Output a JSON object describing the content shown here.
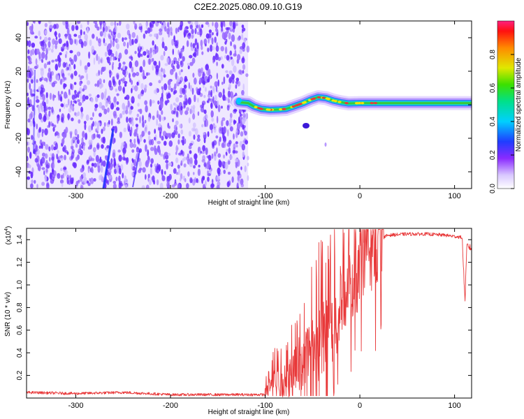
{
  "title": "C2E2.2025.080.09.10.G19",
  "colors": {
    "snr_line": "#e8393a",
    "track_core": "#e8393a",
    "track_mid": "#39c83a",
    "track_outer": "#2f7cff",
    "noise": "#6a2cff",
    "noise_light": "#c9b6ff"
  },
  "chart_data": [
    {
      "type": "heatmap",
      "xlabel": "Height of straight line (km)",
      "ylabel": "Frequency (Hz)",
      "xlim": [
        -352,
        118
      ],
      "ylim": [
        -50,
        50
      ],
      "x_ticks": [
        -300,
        -200,
        -100,
        0,
        100
      ],
      "x_tick_labels": [
        "-300",
        "-200",
        "-100",
        "0",
        "100"
      ],
      "y_ticks": [
        -40,
        -20,
        0,
        20,
        40
      ],
      "y_tick_labels": [
        "-40",
        "-20",
        "0",
        "20",
        "40"
      ],
      "noise_region_x": [
        -352,
        -118
      ],
      "signal_track": [
        {
          "x": -128,
          "y": 1.5
        },
        {
          "x": -118,
          "y": 1.0
        },
        {
          "x": -112,
          "y": -1.0
        },
        {
          "x": -104,
          "y": -2.5
        },
        {
          "x": -95,
          "y": -3.0
        },
        {
          "x": -85,
          "y": -2.8
        },
        {
          "x": -78,
          "y": -2.5
        },
        {
          "x": -70,
          "y": -1.0
        },
        {
          "x": -60,
          "y": 1.0
        },
        {
          "x": -52,
          "y": 3.0
        },
        {
          "x": -44,
          "y": 4.5
        },
        {
          "x": -36,
          "y": 4.0
        },
        {
          "x": -28,
          "y": 2.5
        },
        {
          "x": -20,
          "y": 1.5
        },
        {
          "x": -12,
          "y": 0.8
        },
        {
          "x": 0,
          "y": 1.0
        },
        {
          "x": 20,
          "y": 1.0
        },
        {
          "x": 50,
          "y": 1.0
        },
        {
          "x": 80,
          "y": 1.0
        },
        {
          "x": 118,
          "y": 1.0
        }
      ],
      "colorbar": {
        "label": "Normalized spectral amplitude",
        "ticks": [
          "0.0",
          "0.2",
          "0.4",
          "0.6",
          "0.8"
        ],
        "range": [
          0,
          1
        ]
      },
      "grid": false
    },
    {
      "type": "line",
      "xlabel": "Height of straight line (km)",
      "ylabel": "SNR (10 * v/v)",
      "y_multiplier": "(x10",
      "y_multiplier_exp": "4",
      "y_multiplier_close": ")",
      "xlim": [
        -352,
        118
      ],
      "ylim": [
        0,
        1.5
      ],
      "x_ticks": [
        -300,
        -200,
        -100,
        0,
        100
      ],
      "x_tick_labels": [
        "-300",
        "-200",
        "-100",
        "0",
        "100"
      ],
      "y_ticks": [
        0.2,
        0.4,
        0.6,
        0.8,
        1.0,
        1.2,
        1.4
      ],
      "y_tick_labels": [
        "0.2",
        "0.4",
        "0.6",
        "0.8",
        "1.0",
        "1.2",
        "1.4"
      ],
      "series": [
        {
          "values_envelope": [
            {
              "x": -352,
              "y": 0.05
            },
            {
              "x": -300,
              "y": 0.04
            },
            {
              "x": -250,
              "y": 0.05
            },
            {
              "x": -200,
              "y": 0.03
            },
            {
              "x": -150,
              "y": 0.03
            },
            {
              "x": -100,
              "y": 0.03
            },
            {
              "x": -90,
              "y": 0.18
            },
            {
              "x": -80,
              "y": 0.12
            },
            {
              "x": -70,
              "y": 0.25
            },
            {
              "x": -60,
              "y": 0.35
            },
            {
              "x": -50,
              "y": 0.45
            },
            {
              "x": -40,
              "y": 0.55
            },
            {
              "x": -30,
              "y": 0.65
            },
            {
              "x": -20,
              "y": 0.8
            },
            {
              "x": -10,
              "y": 1.0
            },
            {
              "x": 0,
              "y": 1.15
            },
            {
              "x": 10,
              "y": 1.3
            },
            {
              "x": 20,
              "y": 1.4
            },
            {
              "x": 30,
              "y": 1.44
            },
            {
              "x": 50,
              "y": 1.45
            },
            {
              "x": 70,
              "y": 1.45
            },
            {
              "x": 90,
              "y": 1.44
            },
            {
              "x": 108,
              "y": 1.42
            },
            {
              "x": 111,
              "y": 0.85
            },
            {
              "x": 113,
              "y": 1.35
            },
            {
              "x": 118,
              "y": 1.32
            }
          ]
        }
      ],
      "grid": false
    }
  ]
}
